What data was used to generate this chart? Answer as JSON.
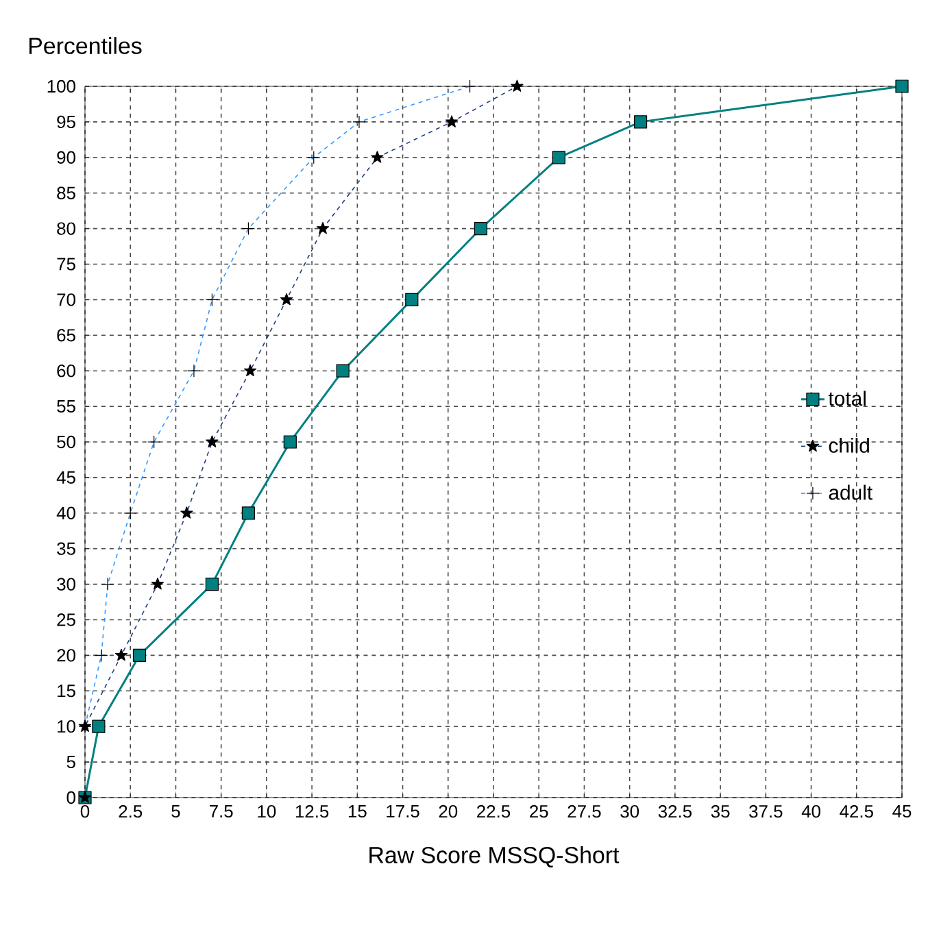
{
  "chart_data": {
    "type": "line",
    "title": "Percentiles",
    "xlabel": "Raw Score MSSQ-Short",
    "xlim": [
      0,
      45
    ],
    "xticks": [
      0,
      2.5,
      5,
      7.5,
      10,
      12.5,
      15,
      17.5,
      20,
      22.5,
      25,
      27.5,
      30,
      32.5,
      35,
      37.5,
      40,
      42.5,
      45
    ],
    "ylim": [
      0,
      100
    ],
    "yticks": [
      0,
      5,
      10,
      15,
      20,
      25,
      30,
      35,
      40,
      45,
      50,
      55,
      60,
      65,
      70,
      75,
      80,
      85,
      90,
      95,
      100
    ],
    "grid": true,
    "legend": "right",
    "series": [
      {
        "name": "total",
        "color": "#008080",
        "marker": "square",
        "line_style": "solid",
        "x": [
          0,
          0.75,
          3,
          7,
          9,
          11.3,
          14.2,
          18,
          21.8,
          26.1,
          30.6,
          45
        ],
        "values": [
          0,
          10,
          20,
          30,
          40,
          50,
          60,
          70,
          80,
          90,
          95,
          100
        ]
      },
      {
        "name": "child",
        "color": "#1f3f7f",
        "marker": "star",
        "line_style": "dashed",
        "x": [
          0,
          0,
          2,
          4,
          5.6,
          7,
          9.1,
          11.1,
          13.1,
          16.1,
          20.2,
          23.8
        ],
        "values": [
          0,
          10,
          20,
          30,
          40,
          50,
          60,
          70,
          80,
          90,
          95,
          100
        ]
      },
      {
        "name": "adult",
        "color": "#3399ff",
        "marker": "cross",
        "line_style": "dashed",
        "x": [
          0,
          0.9,
          1.25,
          2.5,
          3.8,
          6,
          7,
          9,
          12.6,
          15.1,
          21.2
        ],
        "values": [
          10,
          20,
          30,
          40,
          50,
          60,
          70,
          80,
          90,
          95,
          100
        ]
      }
    ]
  }
}
